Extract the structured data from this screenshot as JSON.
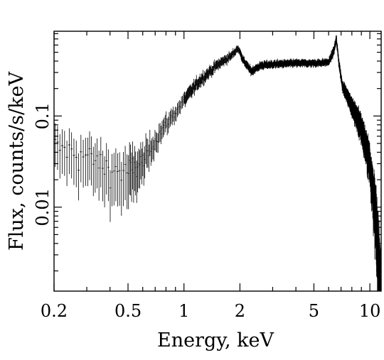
{
  "chart_data": {
    "type": "scatter",
    "style": "error bars, black on white",
    "title": "",
    "xlabel": "Energy, keV",
    "ylabel": "Flux, counts/s/keV",
    "xscale": "log",
    "yscale": "log",
    "xlim": [
      0.2,
      11.5
    ],
    "ylim": [
      0.0012,
      0.85
    ],
    "grid": false,
    "x_tick_labels": [
      "0.2",
      "0.5",
      "1",
      "2",
      "5",
      "10"
    ],
    "x_tick_values": [
      0.2,
      0.5,
      1,
      2,
      5,
      10
    ],
    "y_tick_labels": [
      "0.01",
      "0.1"
    ],
    "y_tick_values": [
      0.01,
      0.1
    ],
    "shape_knots": [
      [
        0.2,
        0.046
      ],
      [
        0.3,
        0.036
      ],
      [
        0.4,
        0.026
      ],
      [
        0.5,
        0.024
      ],
      [
        0.6,
        0.032
      ],
      [
        0.7,
        0.055
      ],
      [
        0.8,
        0.082
      ],
      [
        0.9,
        0.11
      ],
      [
        1.0,
        0.15
      ],
      [
        1.2,
        0.24
      ],
      [
        1.5,
        0.36
      ],
      [
        1.8,
        0.46
      ],
      [
        1.95,
        0.56
      ],
      [
        2.1,
        0.4
      ],
      [
        2.3,
        0.31
      ],
      [
        2.6,
        0.36
      ],
      [
        3.0,
        0.37
      ],
      [
        4.0,
        0.38
      ],
      [
        5.0,
        0.38
      ],
      [
        6.0,
        0.39
      ],
      [
        6.4,
        0.52
      ],
      [
        6.6,
        0.7
      ],
      [
        6.8,
        0.4
      ],
      [
        7.1,
        0.22
      ],
      [
        8.0,
        0.13
      ],
      [
        9.0,
        0.075
      ],
      [
        10.0,
        0.032
      ],
      [
        10.8,
        0.008
      ],
      [
        11.4,
        0.0018
      ]
    ],
    "sampling": {
      "segments": [
        {
          "from": 0.2,
          "to": 0.3,
          "points": 14
        },
        {
          "from": 0.3,
          "to": 0.5,
          "points": 22
        },
        {
          "from": 0.5,
          "to": 1.0,
          "points": 55
        },
        {
          "from": 1.0,
          "to": 2.0,
          "points": 110
        },
        {
          "from": 2.0,
          "to": 6.0,
          "points": 360
        },
        {
          "from": 6.0,
          "to": 7.2,
          "points": 80
        },
        {
          "from": 7.2,
          "to": 11.45,
          "points": 380
        }
      ],
      "relative_error": [
        {
          "x": 0.2,
          "err": 0.5
        },
        {
          "x": 0.5,
          "err": 0.6
        },
        {
          "x": 0.7,
          "err": 0.25
        },
        {
          "x": 1.0,
          "err": 0.15
        },
        {
          "x": 2.0,
          "err": 0.08
        },
        {
          "x": 6.0,
          "err": 0.07
        },
        {
          "x": 7.5,
          "err": 0.12
        },
        {
          "x": 10.0,
          "err": 0.35
        },
        {
          "x": 11.4,
          "err": 0.8
        }
      ]
    }
  }
}
